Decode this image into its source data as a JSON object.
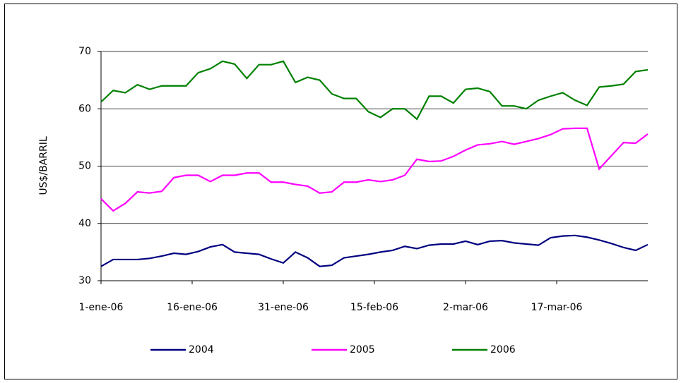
{
  "chart_data": {
    "type": "line",
    "y_label": "US$/BARRIL",
    "x": [
      0,
      2,
      4,
      6,
      8,
      10,
      12,
      14,
      16,
      18,
      20,
      22,
      24,
      26,
      28,
      30,
      32,
      34,
      36,
      38,
      40,
      42,
      44,
      46,
      48,
      50,
      52,
      54,
      56,
      58,
      60,
      62,
      64,
      66,
      68,
      70,
      72,
      74,
      76,
      78,
      80,
      82,
      84,
      86,
      88,
      90
    ],
    "xlim": [
      0,
      90
    ],
    "xticks": [
      {
        "value": 0,
        "label": "1-ene-06"
      },
      {
        "value": 15,
        "label": "16-ene-06"
      },
      {
        "value": 30,
        "label": "31-ene-06"
      },
      {
        "value": 45,
        "label": "15-feb-06"
      },
      {
        "value": 60,
        "label": "2-mar-06"
      },
      {
        "value": 75,
        "label": "17-mar-06"
      }
    ],
    "ylim": [
      30,
      70
    ],
    "yticks": [
      30,
      40,
      50,
      60,
      70
    ],
    "grid": true,
    "legend": "bottom",
    "series": [
      {
        "name": "2004",
        "color": "#000080",
        "values": [
          32.5,
          33.7,
          33.7,
          33.7,
          33.9,
          34.3,
          34.8,
          34.6,
          35.1,
          35.9,
          36.3,
          35,
          34.8,
          34.6,
          33.8,
          33.1,
          35,
          34,
          32.5,
          32.7,
          34,
          34.3,
          34.6,
          35,
          35.3,
          36,
          35.6,
          36.2,
          36.4,
          36.4,
          36.9,
          36.3,
          36.9,
          37,
          36.6,
          36.4,
          36.2,
          37.5,
          37.8,
          37.9,
          37.6,
          37.1,
          36.5,
          35.8,
          35.3,
          36.3
        ]
      },
      {
        "name": "2005",
        "color": "#ff00ff",
        "values": [
          44.3,
          42.2,
          43.5,
          45.5,
          45.3,
          45.6,
          48,
          48.4,
          48.4,
          47.3,
          48.4,
          48.4,
          48.8,
          48.8,
          47.2,
          47.2,
          46.8,
          46.5,
          45.3,
          45.5,
          47.2,
          47.2,
          47.6,
          47.3,
          47.6,
          48.4,
          51.2,
          50.8,
          50.9,
          51.7,
          52.8,
          53.7,
          53.9,
          54.3,
          53.8,
          54.3,
          54.8,
          55.5,
          56.5,
          56.6,
          56.6,
          49.5,
          51.8,
          54.1,
          54,
          55.6
        ]
      },
      {
        "name": "2006",
        "color": "#008000",
        "values": [
          61.2,
          63.2,
          62.8,
          64.2,
          63.4,
          64,
          64,
          64,
          66.3,
          67,
          68.3,
          67.8,
          65.3,
          67.7,
          67.7,
          68.3,
          64.6,
          65.5,
          65,
          62.6,
          61.8,
          61.8,
          59.5,
          58.5,
          60,
          60,
          58.2,
          62.2,
          62.2,
          61,
          63.4,
          63.6,
          63,
          60.5,
          60.5,
          60,
          61.5,
          62.2,
          62.8,
          61.5,
          60.6,
          63.8,
          64,
          64.3,
          66.5,
          66.8
        ]
      }
    ]
  }
}
